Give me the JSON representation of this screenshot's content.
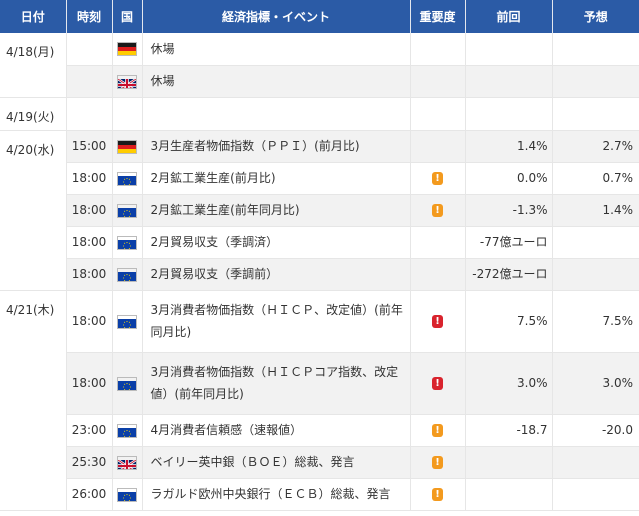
{
  "headers": {
    "date": "日付",
    "time": "時刻",
    "country": "国",
    "event": "経済指標・イベント",
    "importance": "重要度",
    "previous": "前回",
    "forecast": "予想"
  },
  "dates": {
    "d1": "4/18(月)",
    "d2": "4/19(火)",
    "d3": "4/20(水)",
    "d4": "4/21(木)"
  },
  "rows": [
    {
      "time": "",
      "flag": "germany",
      "event": "休場",
      "importance": "",
      "previous": "",
      "forecast": ""
    },
    {
      "time": "",
      "flag": "uk",
      "event": "休場",
      "importance": "",
      "previous": "",
      "forecast": ""
    },
    {
      "time": "15:00",
      "flag": "germany",
      "event": "3月生産者物価指数（ＰＰＩ）(前月比)",
      "importance": "",
      "previous": "1.4%",
      "forecast": "2.7%"
    },
    {
      "time": "18:00",
      "flag": "eu",
      "event": "2月鉱工業生産(前月比)",
      "importance": "medium",
      "previous": "0.0%",
      "forecast": "0.7%"
    },
    {
      "time": "18:00",
      "flag": "eu",
      "event": "2月鉱工業生産(前年同月比)",
      "importance": "medium",
      "previous": "-1.3%",
      "forecast": "1.4%"
    },
    {
      "time": "18:00",
      "flag": "eu",
      "event": "2月貿易収支（季調済）",
      "importance": "",
      "previous": "-77億ユーロ",
      "forecast": ""
    },
    {
      "time": "18:00",
      "flag": "eu",
      "event": "2月貿易収支（季調前）",
      "importance": "",
      "previous": "-272億ユーロ",
      "forecast": ""
    },
    {
      "time": "18:00",
      "flag": "eu",
      "event": "3月消費者物価指数（ＨＩＣＰ、改定値）(前年同月比)",
      "importance": "high",
      "previous": "7.5%",
      "forecast": "7.5%"
    },
    {
      "time": "18:00",
      "flag": "eu",
      "event": "3月消費者物価指数（ＨＩＣＰコア指数、改定値）(前年同月比)",
      "importance": "high",
      "previous": "3.0%",
      "forecast": "3.0%"
    },
    {
      "time": "23:00",
      "flag": "eu",
      "event": "4月消費者信頼感（速報値）",
      "importance": "medium",
      "previous": "-18.7",
      "forecast": "-20.0"
    },
    {
      "time": "25:30",
      "flag": "uk",
      "event": "ベイリー英中銀（ＢＯＥ）総裁、発言",
      "importance": "medium",
      "previous": "",
      "forecast": ""
    },
    {
      "time": "26:00",
      "flag": "eu",
      "event": "ラガルド欧州中央銀行（ＥＣＢ）総裁、発言",
      "importance": "medium",
      "previous": "",
      "forecast": ""
    }
  ],
  "icons": {
    "medium": "exclamation-icon",
    "high": "exclamation-icon"
  },
  "badge_text": "!",
  "colors": {
    "header": "#2b5ba6",
    "medium": "#f39a1e",
    "high": "#d9232d",
    "shade": "#f2f2f2"
  }
}
